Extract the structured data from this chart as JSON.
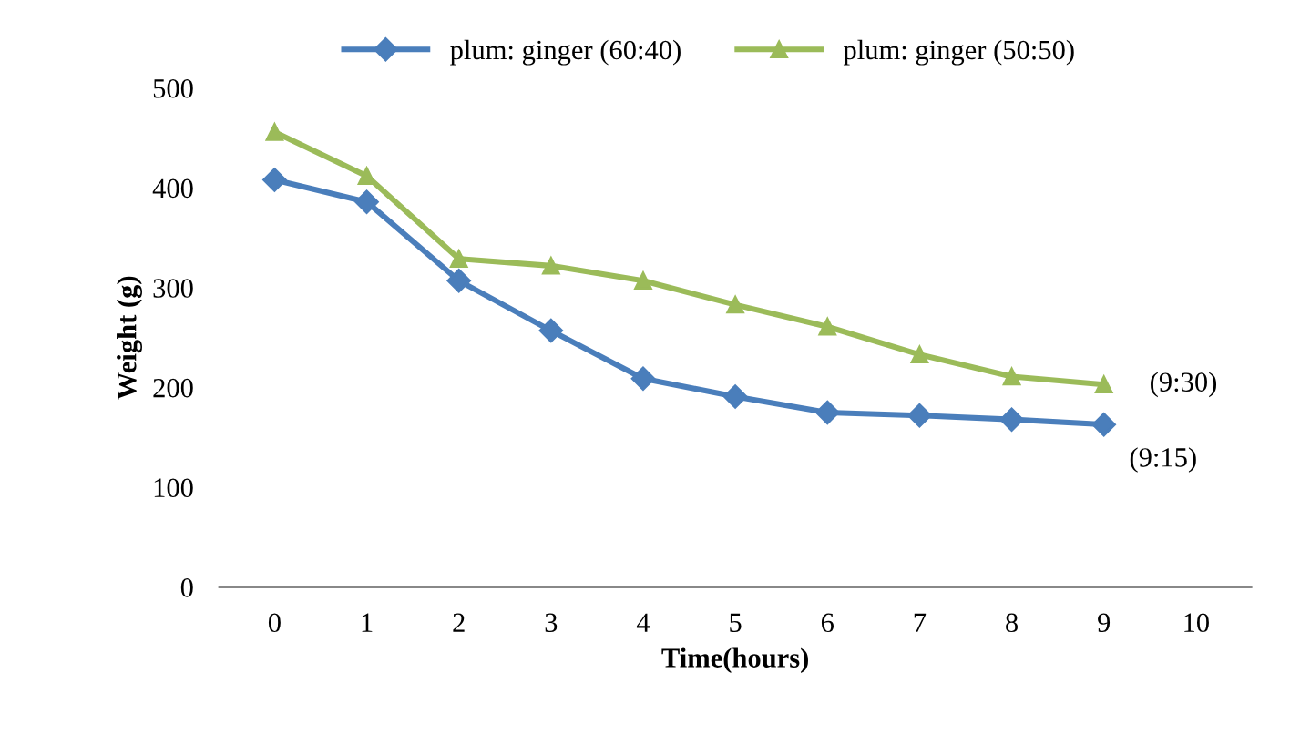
{
  "chart_data": {
    "type": "line",
    "xlabel": "Time(hours)",
    "ylabel": "Weight (g)",
    "categories": [
      "0",
      "1",
      "2",
      "3",
      "4",
      "5",
      "6",
      "7",
      "8",
      "9",
      "10"
    ],
    "series": [
      {
        "name": "plum: ginger (60:40)",
        "color": "#4a7ebb",
        "marker": "diamond",
        "values": [
          408,
          386,
          307,
          257,
          209,
          191,
          175,
          172,
          168,
          163,
          null
        ]
      },
      {
        "name": "plum: ginger (50:50)",
        "color": "#9bbb59",
        "marker": "triangle",
        "values": [
          456,
          412,
          329,
          322,
          307,
          283,
          261,
          233,
          211,
          203,
          null
        ]
      }
    ],
    "annotations": [
      {
        "text": "(9:15)",
        "x": "9",
        "y": 163
      },
      {
        "text": "(9:30)",
        "x": "9",
        "y": 203
      }
    ],
    "ylim": [
      0,
      500
    ],
    "yticks": [
      0,
      100,
      200,
      300,
      400,
      500
    ],
    "legend": "top",
    "grid": false,
    "line_style": "solid"
  }
}
